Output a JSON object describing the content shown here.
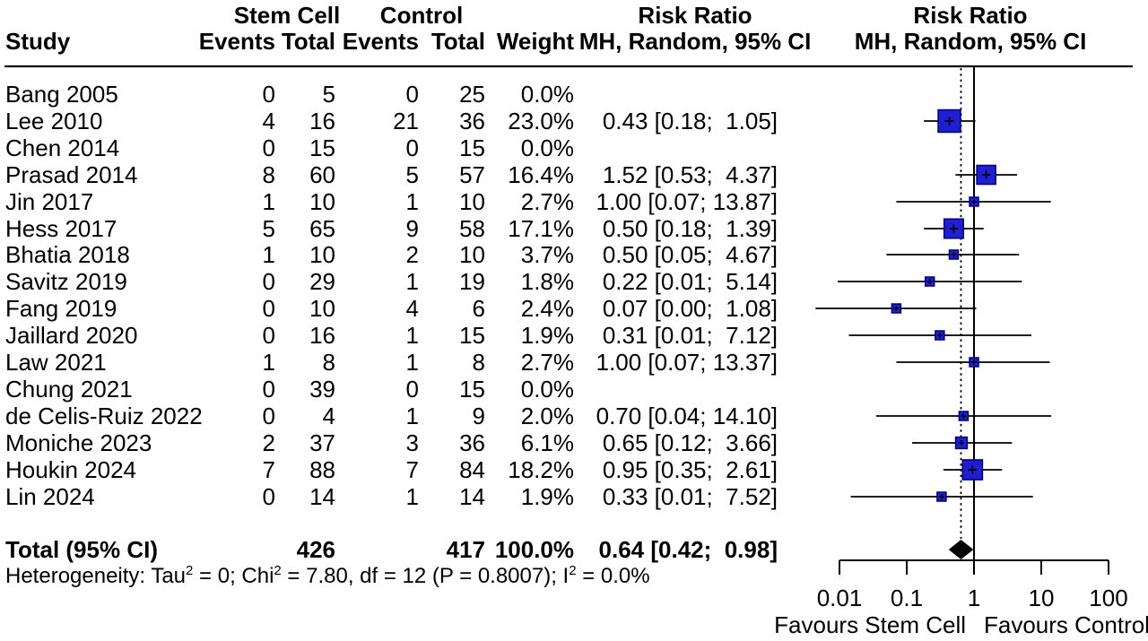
{
  "header": {
    "col_study": "Study",
    "group1": "Stem Cell",
    "group2": "Control",
    "col_events": "Events",
    "col_total": "Total",
    "col_weight": "Weight",
    "risk_ratio_title": "Risk Ratio",
    "risk_ratio_sub": "MH, Random, 95% CI"
  },
  "chart_data": {
    "type": "forest",
    "effect_measure": "Risk Ratio (MH, Random, 95% CI)",
    "x_axis": {
      "scale": "log",
      "ticks": [
        0.01,
        0.1,
        1,
        10,
        100
      ],
      "tick_labels": [
        "0.01",
        "0.1",
        "1",
        "10",
        "100"
      ],
      "favours_left": "Favours Stem Cell",
      "favours_right": "Favours Control"
    },
    "studies": [
      {
        "study": "Bang 2005",
        "e1": "0",
        "t1": "5",
        "e2": "0",
        "t2": "25",
        "weight": "0.0%",
        "w": 0,
        "ci_text": "",
        "rr": null,
        "lo": null,
        "hi": null
      },
      {
        "study": "Lee 2010",
        "e1": "4",
        "t1": "16",
        "e2": "21",
        "t2": "36",
        "weight": "23.0%",
        "w": 23.0,
        "ci_text": "0.43 [0.18;  1.05]",
        "rr": 0.43,
        "lo": 0.18,
        "hi": 1.05
      },
      {
        "study": "Chen 2014",
        "e1": "0",
        "t1": "15",
        "e2": "0",
        "t2": "15",
        "weight": "0.0%",
        "w": 0,
        "ci_text": "",
        "rr": null,
        "lo": null,
        "hi": null
      },
      {
        "study": "Prasad 2014",
        "e1": "8",
        "t1": "60",
        "e2": "5",
        "t2": "57",
        "weight": "16.4%",
        "w": 16.4,
        "ci_text": "1.52 [0.53;  4.37]",
        "rr": 1.52,
        "lo": 0.53,
        "hi": 4.37
      },
      {
        "study": "Jin 2017",
        "e1": "1",
        "t1": "10",
        "e2": "1",
        "t2": "10",
        "weight": "2.7%",
        "w": 2.7,
        "ci_text": "1.00 [0.07; 13.87]",
        "rr": 1.0,
        "lo": 0.07,
        "hi": 13.87
      },
      {
        "study": "Hess 2017",
        "e1": "5",
        "t1": "65",
        "e2": "9",
        "t2": "58",
        "weight": "17.1%",
        "w": 17.1,
        "ci_text": "0.50 [0.18;  1.39]",
        "rr": 0.5,
        "lo": 0.18,
        "hi": 1.39
      },
      {
        "study": "Bhatia 2018",
        "e1": "1",
        "t1": "10",
        "e2": "2",
        "t2": "10",
        "weight": "3.7%",
        "w": 3.7,
        "ci_text": "0.50 [0.05;  4.67]",
        "rr": 0.5,
        "lo": 0.05,
        "hi": 4.67
      },
      {
        "study": "Savitz 2019",
        "e1": "0",
        "t1": "29",
        "e2": "1",
        "t2": "19",
        "weight": "1.8%",
        "w": 1.8,
        "ci_text": "0.22 [0.01;  5.14]",
        "rr": 0.22,
        "lo": 0.0094,
        "hi": 5.14
      },
      {
        "study": "Fang 2019",
        "e1": "0",
        "t1": "10",
        "e2": "4",
        "t2": "6",
        "weight": "2.4%",
        "w": 2.4,
        "ci_text": "0.07 [0.00;  1.08]",
        "rr": 0.07,
        "lo": 0.0044,
        "hi": 1.08
      },
      {
        "study": "Jaillard 2020",
        "e1": "0",
        "t1": "16",
        "e2": "1",
        "t2": "15",
        "weight": "1.9%",
        "w": 1.9,
        "ci_text": "0.31 [0.01;  7.12]",
        "rr": 0.31,
        "lo": 0.0138,
        "hi": 7.12
      },
      {
        "study": "Law 2021",
        "e1": "1",
        "t1": "8",
        "e2": "1",
        "t2": "8",
        "weight": "2.7%",
        "w": 2.7,
        "ci_text": "1.00 [0.07; 13.37]",
        "rr": 1.0,
        "lo": 0.07,
        "hi": 13.37
      },
      {
        "study": "Chung 2021",
        "e1": "0",
        "t1": "39",
        "e2": "0",
        "t2": "15",
        "weight": "0.0%",
        "w": 0,
        "ci_text": "",
        "rr": null,
        "lo": null,
        "hi": null
      },
      {
        "study": "de Celis-Ruiz 2022",
        "e1": "0",
        "t1": "4",
        "e2": "1",
        "t2": "9",
        "weight": "2.0%",
        "w": 2.0,
        "ci_text": "0.70 [0.04; 14.10]",
        "rr": 0.7,
        "lo": 0.0351,
        "hi": 14.1
      },
      {
        "study": "Moniche 2023",
        "e1": "2",
        "t1": "37",
        "e2": "3",
        "t2": "36",
        "weight": "6.1%",
        "w": 6.1,
        "ci_text": "0.65 [0.12;  3.66]",
        "rr": 0.65,
        "lo": 0.12,
        "hi": 3.66
      },
      {
        "study": "Houkin 2024",
        "e1": "7",
        "t1": "88",
        "e2": "7",
        "t2": "84",
        "weight": "18.2%",
        "w": 18.2,
        "ci_text": "0.95 [0.35;  2.61]",
        "rr": 0.95,
        "lo": 0.35,
        "hi": 2.61
      },
      {
        "study": "Lin 2024",
        "e1": "0",
        "t1": "14",
        "e2": "1",
        "t2": "14",
        "weight": "1.9%",
        "w": 1.9,
        "ci_text": "0.33 [0.01;  7.52]",
        "rr": 0.33,
        "lo": 0.0147,
        "hi": 7.52
      }
    ],
    "total": {
      "label": "Total (95% CI)",
      "t1": "426",
      "t2": "417",
      "weight": "100.0%",
      "ci_text": "0.64 [0.42;  0.98]",
      "rr": 0.64,
      "lo": 0.42,
      "hi": 0.98
    },
    "heterogeneity_parts": [
      [
        "t",
        "Heterogeneity: Tau"
      ],
      [
        "s",
        "2"
      ],
      [
        "t",
        " = 0; Chi"
      ],
      [
        "s",
        "2"
      ],
      [
        "t",
        " = 7.80, df = 12 (P = 0.8007); I"
      ],
      [
        "s",
        "2"
      ],
      [
        "t",
        " = 0.0%"
      ]
    ]
  },
  "colors": {
    "square_fill": "#1f1fd1",
    "square_border": "#000080",
    "line": "#000000",
    "diamond": "#000000",
    "background": "#ffffff"
  }
}
